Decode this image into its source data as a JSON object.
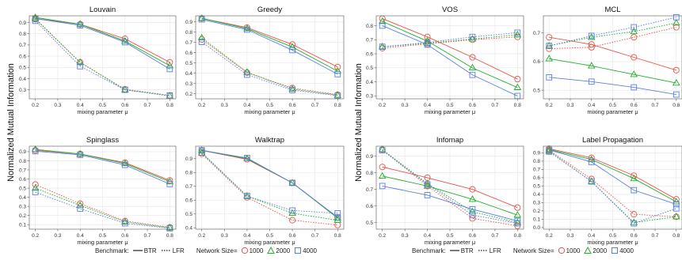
{
  "chart_data": [
    {
      "type": "line",
      "title": "Louvain",
      "x": [
        0.2,
        0.4,
        0.6,
        0.8
      ],
      "xlabel": "mixing parameter μ",
      "xticks": [
        0.2,
        0.3,
        0.4,
        0.5,
        0.6,
        0.7,
        0.8
      ],
      "ylim": [
        0.22,
        0.96
      ],
      "yticks": [
        0.3,
        0.4,
        0.5,
        0.6,
        0.7,
        0.8,
        0.9
      ],
      "series": [
        {
          "benchmark": "BTR",
          "size": "1000",
          "values": [
            0.935,
            0.885,
            0.755,
            0.545
          ]
        },
        {
          "benchmark": "BTR",
          "size": "2000",
          "values": [
            0.945,
            0.885,
            0.735,
            0.515
          ]
        },
        {
          "benchmark": "BTR",
          "size": "4000",
          "values": [
            0.935,
            0.875,
            0.725,
            0.485
          ]
        },
        {
          "benchmark": "LFR",
          "size": "1000",
          "values": [
            0.93,
            0.545,
            0.305,
            0.25
          ]
        },
        {
          "benchmark": "LFR",
          "size": "2000",
          "values": [
            0.935,
            0.545,
            0.3,
            0.245
          ]
        },
        {
          "benchmark": "LFR",
          "size": "4000",
          "values": [
            0.915,
            0.51,
            0.3,
            0.25
          ]
        }
      ]
    },
    {
      "type": "line",
      "title": "Greedy",
      "x": [
        0.2,
        0.4,
        0.6,
        0.8
      ],
      "xlabel": "mixing parameter μ",
      "xticks": [
        0.2,
        0.3,
        0.4,
        0.5,
        0.6,
        0.7,
        0.8
      ],
      "ylim": [
        0.15,
        0.96
      ],
      "yticks": [
        0.2,
        0.3,
        0.4,
        0.5,
        0.6,
        0.7,
        0.8,
        0.9
      ],
      "series": [
        {
          "benchmark": "BTR",
          "size": "1000",
          "values": [
            0.935,
            0.845,
            0.68,
            0.46
          ]
        },
        {
          "benchmark": "BTR",
          "size": "2000",
          "values": [
            0.935,
            0.835,
            0.655,
            0.42
          ]
        },
        {
          "benchmark": "BTR",
          "size": "4000",
          "values": [
            0.925,
            0.825,
            0.625,
            0.39
          ]
        },
        {
          "benchmark": "LFR",
          "size": "1000",
          "values": [
            0.73,
            0.405,
            0.255,
            0.19
          ]
        },
        {
          "benchmark": "LFR",
          "size": "2000",
          "values": [
            0.745,
            0.41,
            0.245,
            0.185
          ]
        },
        {
          "benchmark": "LFR",
          "size": "4000",
          "values": [
            0.705,
            0.385,
            0.235,
            0.18
          ]
        }
      ]
    },
    {
      "type": "line",
      "title": "VOS",
      "x": [
        0.2,
        0.4,
        0.6,
        0.8
      ],
      "xlabel": "mixing parameter μ",
      "xticks": [
        0.2,
        0.3,
        0.4,
        0.5,
        0.6,
        0.7,
        0.8
      ],
      "ylim": [
        0.28,
        0.87
      ],
      "yticks": [
        0.3,
        0.4,
        0.5,
        0.6,
        0.7,
        0.8
      ],
      "series": [
        {
          "benchmark": "BTR",
          "size": "1000",
          "values": [
            0.85,
            0.72,
            0.575,
            0.42
          ]
        },
        {
          "benchmark": "BTR",
          "size": "2000",
          "values": [
            0.83,
            0.69,
            0.5,
            0.36
          ]
        },
        {
          "benchmark": "BTR",
          "size": "4000",
          "values": [
            0.8,
            0.665,
            0.45,
            0.3
          ]
        },
        {
          "benchmark": "LFR",
          "size": "1000",
          "values": [
            0.64,
            0.67,
            0.7,
            0.72
          ]
        },
        {
          "benchmark": "LFR",
          "size": "2000",
          "values": [
            0.65,
            0.675,
            0.705,
            0.735
          ]
        },
        {
          "benchmark": "LFR",
          "size": "4000",
          "values": [
            0.65,
            0.68,
            0.72,
            0.75
          ]
        }
      ]
    },
    {
      "type": "line",
      "title": "MCL",
      "x": [
        0.2,
        0.4,
        0.6,
        0.8
      ],
      "xlabel": "mixing parameter μ",
      "xticks": [
        0.2,
        0.3,
        0.4,
        0.5,
        0.6,
        0.7,
        0.8
      ],
      "ylim": [
        0.47,
        0.76
      ],
      "yticks": [
        0.5,
        0.6,
        0.7
      ],
      "series": [
        {
          "benchmark": "BTR",
          "size": "1000",
          "values": [
            0.685,
            0.66,
            0.615,
            0.57
          ]
        },
        {
          "benchmark": "BTR",
          "size": "2000",
          "values": [
            0.61,
            0.585,
            0.555,
            0.525
          ]
        },
        {
          "benchmark": "BTR",
          "size": "4000",
          "values": [
            0.545,
            0.53,
            0.51,
            0.485
          ]
        },
        {
          "benchmark": "LFR",
          "size": "1000",
          "values": [
            0.645,
            0.65,
            0.685,
            0.72
          ]
        },
        {
          "benchmark": "LFR",
          "size": "2000",
          "values": [
            0.655,
            0.685,
            0.705,
            0.735
          ]
        },
        {
          "benchmark": "LFR",
          "size": "4000",
          "values": [
            0.655,
            0.69,
            0.72,
            0.755
          ]
        }
      ]
    },
    {
      "type": "line",
      "title": "Spinglass",
      "x": [
        0.2,
        0.4,
        0.6,
        0.8
      ],
      "xlabel": "mixing parameter μ",
      "xticks": [
        0.2,
        0.3,
        0.4,
        0.5,
        0.6,
        0.7,
        0.8
      ],
      "ylim": [
        0.05,
        0.96
      ],
      "yticks": [
        0.1,
        0.2,
        0.3,
        0.4,
        0.5,
        0.6,
        0.7,
        0.8,
        0.9
      ],
      "series": [
        {
          "benchmark": "BTR",
          "size": "1000",
          "values": [
            0.915,
            0.875,
            0.78,
            0.585
          ]
        },
        {
          "benchmark": "BTR",
          "size": "2000",
          "values": [
            0.925,
            0.875,
            0.77,
            0.57
          ]
        },
        {
          "benchmark": "BTR",
          "size": "4000",
          "values": [
            0.905,
            0.865,
            0.755,
            0.545
          ]
        },
        {
          "benchmark": "LFR",
          "size": "1000",
          "values": [
            0.54,
            0.33,
            0.14,
            0.07
          ]
        },
        {
          "benchmark": "LFR",
          "size": "2000",
          "values": [
            0.5,
            0.31,
            0.13,
            0.065
          ]
        },
        {
          "benchmark": "LFR",
          "size": "4000",
          "values": [
            0.455,
            0.275,
            0.115,
            0.06
          ]
        }
      ]
    },
    {
      "type": "line",
      "title": "Walktrap",
      "x": [
        0.2,
        0.4,
        0.6,
        0.8
      ],
      "xlabel": "mixing parameter μ",
      "xticks": [
        0.2,
        0.3,
        0.4,
        0.5,
        0.6,
        0.7,
        0.8
      ],
      "ylim": [
        0.39,
        0.99
      ],
      "yticks": [
        0.4,
        0.5,
        0.6,
        0.7,
        0.8,
        0.9
      ],
      "series": [
        {
          "benchmark": "BTR",
          "size": "1000",
          "values": [
            0.96,
            0.895,
            0.725,
            0.475
          ]
        },
        {
          "benchmark": "BTR",
          "size": "2000",
          "values": [
            0.96,
            0.9,
            0.725,
            0.47
          ]
        },
        {
          "benchmark": "BTR",
          "size": "4000",
          "values": [
            0.96,
            0.905,
            0.725,
            0.475
          ]
        },
        {
          "benchmark": "LFR",
          "size": "1000",
          "values": [
            0.935,
            0.62,
            0.455,
            0.42
          ]
        },
        {
          "benchmark": "LFR",
          "size": "2000",
          "values": [
            0.94,
            0.63,
            0.505,
            0.455
          ]
        },
        {
          "benchmark": "LFR",
          "size": "4000",
          "values": [
            0.945,
            0.63,
            0.525,
            0.505
          ]
        }
      ]
    },
    {
      "type": "line",
      "title": "Infomap",
      "x": [
        0.2,
        0.4,
        0.6,
        0.8
      ],
      "xlabel": "mixing parameter μ",
      "xticks": [
        0.2,
        0.3,
        0.4,
        0.5,
        0.6,
        0.7,
        0.8
      ],
      "ylim": [
        0.46,
        0.96
      ],
      "yticks": [
        0.5,
        0.6,
        0.7,
        0.8,
        0.9
      ],
      "series": [
        {
          "benchmark": "BTR",
          "size": "1000",
          "values": [
            0.835,
            0.77,
            0.7,
            0.59
          ]
        },
        {
          "benchmark": "BTR",
          "size": "2000",
          "values": [
            0.78,
            0.72,
            0.64,
            0.545
          ]
        },
        {
          "benchmark": "BTR",
          "size": "4000",
          "values": [
            0.72,
            0.665,
            0.58,
            0.51
          ]
        },
        {
          "benchmark": "LFR",
          "size": "1000",
          "values": [
            0.94,
            0.72,
            0.525,
            0.48
          ]
        },
        {
          "benchmark": "LFR",
          "size": "2000",
          "values": [
            0.94,
            0.735,
            0.565,
            0.5
          ]
        },
        {
          "benchmark": "LFR",
          "size": "4000",
          "values": [
            0.935,
            0.73,
            0.545,
            0.495
          ]
        }
      ]
    },
    {
      "type": "line",
      "title": "Label Propagation",
      "x": [
        0.2,
        0.4,
        0.6,
        0.8
      ],
      "xlabel": "mixing parameter μ",
      "xticks": [
        0.2,
        0.3,
        0.4,
        0.5,
        0.6,
        0.7,
        0.8
      ],
      "ylim": [
        -0.02,
        0.98
      ],
      "yticks": [
        0.0,
        0.1,
        0.2,
        0.3,
        0.4,
        0.5,
        0.6,
        0.7,
        0.8,
        0.9
      ],
      "series": [
        {
          "benchmark": "BTR",
          "size": "1000",
          "values": [
            0.95,
            0.84,
            0.625,
            0.34
          ]
        },
        {
          "benchmark": "BTR",
          "size": "2000",
          "values": [
            0.94,
            0.82,
            0.59,
            0.31
          ]
        },
        {
          "benchmark": "BTR",
          "size": "4000",
          "values": [
            0.935,
            0.79,
            0.45,
            0.28
          ]
        },
        {
          "benchmark": "LFR",
          "size": "1000",
          "values": [
            0.93,
            0.585,
            0.16,
            0.13
          ]
        },
        {
          "benchmark": "LFR",
          "size": "2000",
          "values": [
            0.92,
            0.555,
            0.06,
            0.13
          ]
        },
        {
          "benchmark": "LFR",
          "size": "4000",
          "values": [
            0.915,
            0.555,
            0.05,
            0.23
          ]
        }
      ]
    }
  ],
  "ylabel": "Normalized Mutual Information",
  "colors": {
    "1000": "#e8534a",
    "2000": "#1fae2a",
    "4000": "#5a7fe0"
  },
  "legend": {
    "benchmark_label": "Benchmark:",
    "btr": "BTR",
    "lfr": "LFR",
    "size_label": "Network Size=",
    "s1000": "1000",
    "s2000": "2000",
    "s4000": "4000"
  }
}
